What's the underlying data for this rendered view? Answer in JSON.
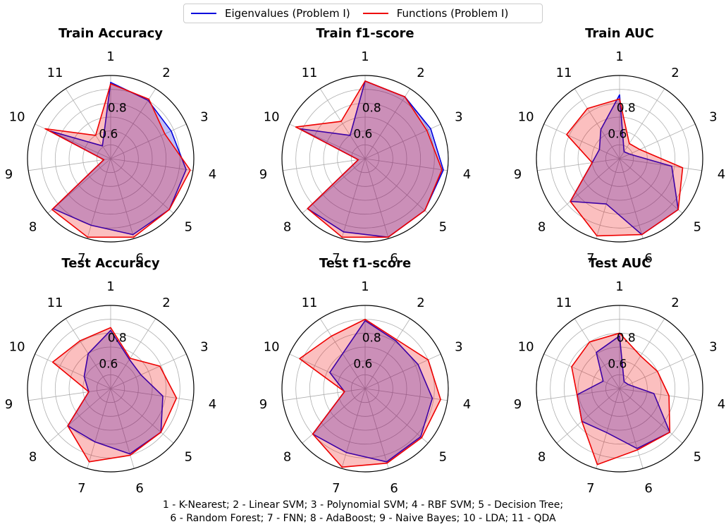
{
  "legend": {
    "items": [
      {
        "label": "Eigenvalues (Problem I)",
        "color": "#0000dd"
      },
      {
        "label": "Functions (Problem I)",
        "color": "#ee0000"
      }
    ]
  },
  "footnote": {
    "line1": "1 - K-Nearest; 2 - Linear SVM; 3 - Polynomial SVM; 4 - RBF SVM; 5 - Decision Tree;",
    "line2": "6 - Random Forest; 7 - FNN; 8 - AdaBoost; 9 - Naive Bayes; 10 - LDA; 11 - QDA"
  },
  "chart_data": [
    {
      "type": "radar",
      "title": "Train Accuracy",
      "categories": [
        "1",
        "2",
        "3",
        "4",
        "5",
        "6",
        "7",
        "8",
        "9",
        "10",
        "11"
      ],
      "rlim": [
        0.4,
        1.0
      ],
      "rticks": [
        "0.6",
        "0.8"
      ],
      "grid": true,
      "series": [
        {
          "name": "Eigenvalues (Problem I)",
          "values": [
            0.95,
            0.9,
            0.88,
            0.95,
            0.96,
            0.97,
            0.9,
            0.95,
            0.45,
            0.88,
            0.51
          ]
        },
        {
          "name": "Functions (Problem I)",
          "values": [
            0.94,
            0.91,
            0.83,
            0.98,
            0.96,
            0.99,
            0.99,
            0.96,
            0.45,
            0.92,
            0.6
          ]
        }
      ]
    },
    {
      "type": "radar",
      "title": "Train f1-score",
      "categories": [
        "1",
        "2",
        "3",
        "4",
        "5",
        "6",
        "7",
        "8",
        "9",
        "10",
        "11"
      ],
      "rlim": [
        0.4,
        1.0
      ],
      "rticks": [
        "0.6",
        "0.8"
      ],
      "grid": true,
      "series": [
        {
          "name": "Eigenvalues (Problem I)",
          "values": [
            0.96,
            0.93,
            0.92,
            0.97,
            0.97,
            0.99,
            0.95,
            0.95,
            0.45,
            0.92,
            0.6
          ]
        },
        {
          "name": "Functions (Problem I)",
          "values": [
            0.96,
            0.93,
            0.89,
            0.96,
            0.97,
            0.99,
            0.99,
            0.95,
            0.45,
            0.95,
            0.72
          ]
        }
      ]
    },
    {
      "type": "radar",
      "title": "Train AUC",
      "categories": [
        "1",
        "2",
        "3",
        "4",
        "5",
        "6",
        "7",
        "8",
        "9",
        "10",
        "11"
      ],
      "rlim": [
        0.4,
        1.0
      ],
      "rticks": [
        "0.6",
        "0.8"
      ],
      "grid": true,
      "series": [
        {
          "name": "Eigenvalues (Problem I)",
          "values": [
            0.86,
            0.46,
            0.48,
            0.78,
            0.96,
            0.97,
            0.74,
            0.87,
            0.6,
            0.56,
            0.65
          ]
        },
        {
          "name": "Functions (Problem I)",
          "values": [
            0.83,
            0.53,
            0.56,
            0.86,
            0.96,
            0.97,
            0.98,
            0.87,
            0.6,
            0.82,
            0.83
          ]
        }
      ]
    },
    {
      "type": "radar",
      "title": "Test Accuracy",
      "categories": [
        "1",
        "2",
        "3",
        "4",
        "5",
        "6",
        "7",
        "8",
        "9",
        "10",
        "11"
      ],
      "rlim": [
        0.4,
        1.0
      ],
      "rticks": [
        "0.6",
        "0.8"
      ],
      "grid": true,
      "series": [
        {
          "name": "Eigenvalues (Problem I)",
          "values": [
            0.82,
            0.65,
            0.64,
            0.78,
            0.88,
            0.89,
            0.8,
            0.81,
            0.56,
            0.61,
            0.7
          ]
        },
        {
          "name": "Functions (Problem I)",
          "values": [
            0.84,
            0.66,
            0.79,
            0.88,
            0.88,
            0.9,
            0.95,
            0.81,
            0.56,
            0.86,
            0.81
          ]
        }
      ]
    },
    {
      "type": "radar",
      "title": "Test f1-score",
      "categories": [
        "1",
        "2",
        "3",
        "4",
        "5",
        "6",
        "7",
        "8",
        "9",
        "10",
        "11"
      ],
      "rlim": [
        0.4,
        1.0
      ],
      "rticks": [
        "0.6",
        "0.8"
      ],
      "grid": true,
      "series": [
        {
          "name": "Eigenvalues (Problem I)",
          "values": [
            0.89,
            0.81,
            0.82,
            0.89,
            0.93,
            0.95,
            0.88,
            0.9,
            0.55,
            0.68,
            0.7
          ]
        },
        {
          "name": "Functions (Problem I)",
          "values": [
            0.9,
            0.82,
            0.9,
            0.95,
            0.94,
            0.96,
            0.99,
            0.9,
            0.55,
            0.92,
            0.85
          ]
        }
      ]
    },
    {
      "type": "radar",
      "title": "Test AUC",
      "categories": [
        "1",
        "2",
        "3",
        "4",
        "5",
        "6",
        "7",
        "8",
        "9",
        "10",
        "11"
      ],
      "rlim": [
        0.4,
        1.0
      ],
      "rticks": [
        "0.6",
        "0.8"
      ],
      "grid": true,
      "series": [
        {
          "name": "Eigenvalues (Problem I)",
          "values": [
            0.78,
            0.46,
            0.47,
            0.65,
            0.88,
            0.85,
            0.73,
            0.76,
            0.71,
            0.53,
            0.71
          ]
        },
        {
          "name": "Functions (Problem I)",
          "values": [
            0.8,
            0.68,
            0.7,
            0.76,
            0.88,
            0.86,
            0.97,
            0.76,
            0.71,
            0.78,
            0.8
          ]
        }
      ]
    }
  ]
}
